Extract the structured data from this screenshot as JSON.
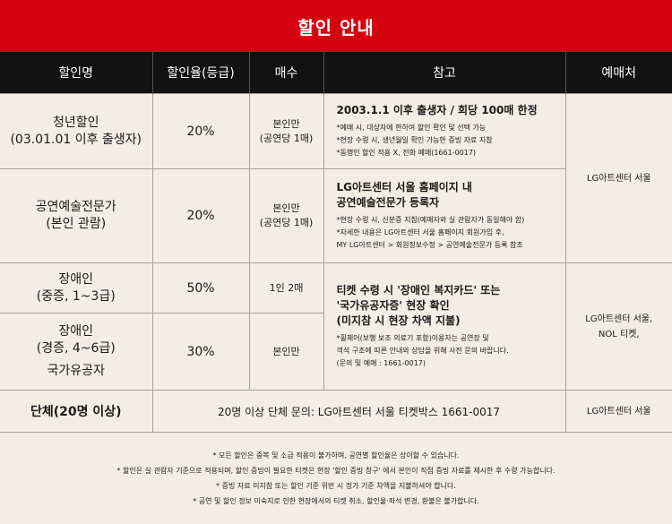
{
  "title": "할인 안내",
  "headers": [
    "할인명",
    "할인율(등급)",
    "매수",
    "참고",
    "예매처"
  ],
  "rows": {
    "youth": {
      "name_line1": "청년할인",
      "name_line2": "(03.01.01 이후 출생자)",
      "rate": "20%",
      "qty_line1": "본인만",
      "qty_line2": "(공연당 1매)",
      "note_main_line1": "2003.1.1 이후 출생자 / 회당 100매 한정",
      "note_sub": [
        "*예매 시, 대상자에 한하여 할인 확인 및 선택 가능",
        "*현장 수령 시, 생년월일 확인 가능한 증빙 자료 지참",
        "*동행인 할인 적용 X, 전화 예매(1661-0017)"
      ]
    },
    "pro": {
      "name_line1": "공연예술전문가",
      "name_line2": "(본인 관람)",
      "rate": "20%",
      "qty_line1": "본인만",
      "qty_line2": "(공연당 1매)",
      "note_main_line1": "LG아트센터 서울 홈페이지 내",
      "note_main_line2": "공연예술전문가 등록자",
      "note_sub": [
        "*현장 수령 시, 신분증 지참(예매자와 실 관람자가 동일해야 함)",
        "*자세한 내용은 LG아트센터 서울 홈페이지 회원가입 후,",
        "MY LG아트센터 > 회원정보수정 > 공연예술전문가 등록 참조"
      ]
    },
    "disabled_severe": {
      "name_line1": "장애인",
      "name_line2": "(중증, 1~3급)",
      "rate": "50%",
      "qty": "1인 2매"
    },
    "disabled_mild": {
      "name_line1": "장애인",
      "name_line2": "(경증, 4~6급)",
      "name_line3": "국가유공자",
      "rate": "30%",
      "qty": "본인만"
    },
    "disabled_note": {
      "main_line1": "티켓 수령 시 '장애인 복지카드' 또는",
      "main_line2": "'국가유공자증' 현장 확인",
      "main_line3": "(미지참 시 현장 차액 지불)",
      "sub": [
        "*휠체어(보행 보조 의료기 포함)이용자는 공연장 및",
        "객석 구조에 따른 안내와 상담을 위해 사전 문의 바랍니다.",
        "(문의 및 예매 : 1661-0017)"
      ]
    },
    "group": {
      "label": "단체(20명 이상)",
      "info": "20명 이상 단체 문의: LG아트센터 서울 티켓박스 1661-0017"
    }
  },
  "places": {
    "top": "LG아트센터 서울",
    "mid_line1": "LG아트센터 서울,",
    "mid_line2": "NOL 티켓,",
    "group": "LG아트센터 서울"
  },
  "footnotes": [
    "* 모든 할인은 중복 및 소급 적용이 불가하며, 공연별 할인율은 상이할 수 있습니다.",
    "* 할인은 실 관람자 기준으로 적용되며, 할인 증빙이 필요한 티켓은 현장 '할인 증빙 창구' 에서 본인이 직접 증빙 자료를 제시한 후 수령 가능합니다.",
    "* 증빙 자료 미지참 또는 할인 기준 위반 시 정가 기준 차액을 지불하셔야 합니다.",
    "* 공연 및 할인 정보 미숙지로 인한 현장에서의 티켓 취소, 할인율·좌석 변경, 환불은 불가합니다."
  ],
  "colors": {
    "accent": "#d7020f",
    "header_bg": "#121212",
    "body_bg": "#f3ede3"
  }
}
